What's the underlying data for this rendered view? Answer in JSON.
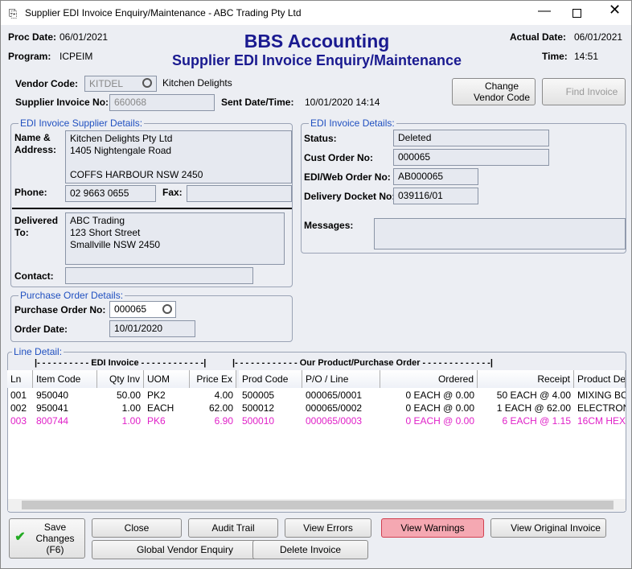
{
  "window": {
    "title": "Supplier EDI Invoice Enquiry/Maintenance - ABC Trading Pty Ltd"
  },
  "header": {
    "proc_date_label": "Proc Date:",
    "proc_date": "06/01/2021",
    "program_label": "Program:",
    "program": "ICPEIM",
    "title": "BBS Accounting",
    "subtitle": "Supplier EDI Invoice Enquiry/Maintenance",
    "actual_date_label": "Actual Date:",
    "actual_date": "06/01/2021",
    "time_label": "Time:",
    "time": "14:51"
  },
  "vendor": {
    "code_label": "Vendor Code:",
    "code": "KITDEL",
    "name": "Kitchen Delights",
    "invoice_no_label": "Supplier Invoice No:",
    "invoice_no": "660068",
    "sent_label": "Sent Date/Time:",
    "sent": "10/01/2020 14:14",
    "change_button": "Change\nVendor Code",
    "find_button": "Find Invoice"
  },
  "supplier_details": {
    "legend": "EDI Invoice Supplier Details:",
    "name_label": "Name &\nAddress:",
    "address": [
      "Kitchen Delights Pty Ltd",
      "1405 Nightengale Road",
      "",
      "COFFS HARBOUR NSW 2450"
    ],
    "phone_label": "Phone:",
    "phone": "02 9663 0655",
    "fax_label": "Fax:",
    "delivered_label": "Delivered\nTo:",
    "delivered": [
      "ABC Trading",
      "123 Short Street",
      "Smallville NSW 2450"
    ],
    "contact_label": "Contact:"
  },
  "invoice_details": {
    "legend": "EDI Invoice Details:",
    "status_label": "Status:",
    "status": "Deleted",
    "cust_order_label": "Cust Order No:",
    "cust_order": "000065",
    "edi_order_label": "EDI/Web Order No:",
    "edi_order": "AB000065",
    "docket_label": "Delivery Docket No:",
    "docket": "039116/01",
    "messages_label": "Messages:"
  },
  "purchase_order": {
    "legend": "Purchase Order Details:",
    "po_label": "Purchase Order No:",
    "po": "000065",
    "date_label": "Order Date:",
    "date": "10/01/2020"
  },
  "line_detail": {
    "legend": "Line Detail:",
    "group_edi": "|- - - - - - - - - - EDI Invoice - - - - - - - - - - - -|",
    "group_ours": "|- - - - - - - - - - - - Our Product/Purchase Order - - - - - - - - - - - - -|",
    "columns": [
      "Ln",
      "Item Code",
      "Qty Inv",
      "UOM",
      "Price Ex",
      "Prod Code",
      "P/O / Line",
      "Ordered",
      "Receipt",
      "Product De"
    ],
    "rows": [
      [
        "001",
        "950040",
        "50.00",
        "PK2",
        "4.00",
        "500005",
        "000065/0001",
        "0 EACH @ 0.00",
        "50 EACH @ 4.00",
        "MIXING BOWL"
      ],
      [
        "002",
        "950041",
        "1.00",
        "EACH",
        "62.00",
        "500012",
        "000065/0002",
        "0 EACH @ 0.00",
        "1 EACH @ 62.00",
        "ELECTRONIC"
      ],
      [
        "003",
        "800744",
        "1.00",
        "PK6",
        "6.90",
        "500010",
        "000065/0003",
        "0 EACH @ 0.00",
        "6 EACH @ 1.15",
        "16CM HEX"
      ]
    ]
  },
  "buttons": {
    "save": "Save\nChanges\n(F6)",
    "close": "Close",
    "audit": "Audit Trail",
    "errors": "View Errors",
    "warnings": "View Warnings",
    "original": "View Original Invoice",
    "global": "Global Vendor Enquiry",
    "delete": "Delete Invoice"
  }
}
